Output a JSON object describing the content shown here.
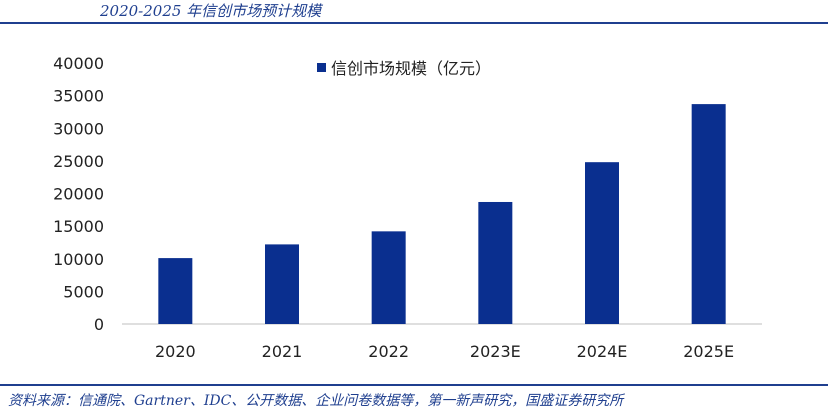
{
  "figure": {
    "title": "2020-2025 年信创市场预计规模",
    "source": "资料来源：信通院、Gartner、IDC、公开数据、企业问卷数据等，第一新声研究，国盛证券研究所"
  },
  "chart_data": {
    "type": "bar",
    "categories": [
      "2020",
      "2021",
      "2022",
      "2023E",
      "2024E",
      "2025E"
    ],
    "series": [
      {
        "name": "信创市场规模（亿元）",
        "values": [
          10100,
          12200,
          14200,
          18700,
          24800,
          33700
        ],
        "color": "#0a2f8f"
      }
    ],
    "ylim": [
      0,
      40000
    ],
    "yticks": [
      "0",
      "5000",
      "10000",
      "15000",
      "20000",
      "25000",
      "30000",
      "35000",
      "40000"
    ],
    "grid": false,
    "legend_position": "top-center"
  }
}
